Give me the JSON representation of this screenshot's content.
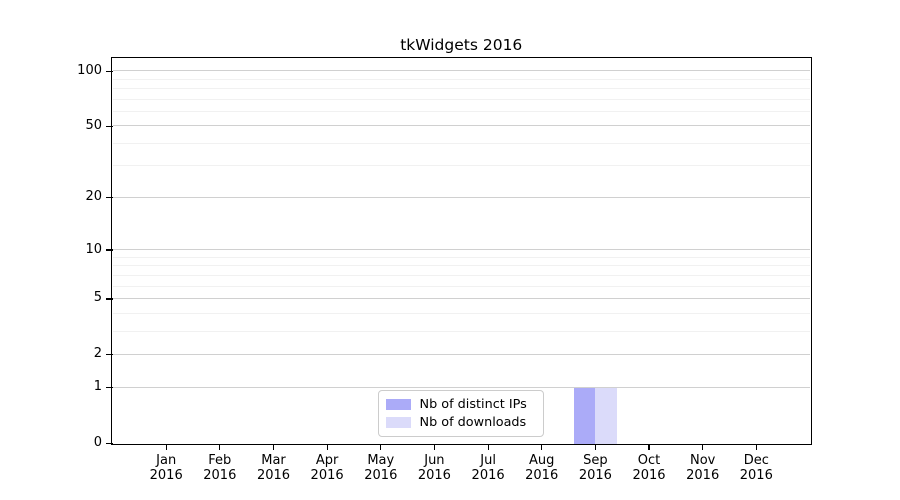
{
  "chart_data": {
    "type": "bar",
    "title": "tkWidgets 2016",
    "x_tick_months": [
      "Jan",
      "Feb",
      "Mar",
      "Apr",
      "May",
      "Jun",
      "Jul",
      "Aug",
      "Sep",
      "Oct",
      "Nov",
      "Dec"
    ],
    "x_tick_year": "2016",
    "series": [
      {
        "name": "Nb of distinct IPs",
        "color": "#ababf8",
        "values": [
          0,
          0,
          0,
          0,
          0,
          0,
          0,
          0,
          1,
          0,
          0,
          0
        ]
      },
      {
        "name": "Nb of downloads",
        "color": "#dbdbfa",
        "values": [
          0,
          0,
          0,
          0,
          0,
          0,
          0,
          0,
          1,
          0,
          0,
          0
        ]
      }
    ],
    "yscale": "log1p",
    "ylim": [
      0,
      117
    ],
    "yticks": [
      0,
      1,
      2,
      5,
      10,
      20,
      50,
      100
    ],
    "ytick_labels": [
      "0",
      "1",
      "2",
      "5",
      "10",
      "20",
      "50",
      "100"
    ],
    "minor_gridline_values": [
      3,
      4,
      6,
      7,
      8,
      9,
      30,
      40,
      60,
      70,
      80,
      90
    ],
    "grid": true,
    "legend": {
      "position": "lower center"
    }
  }
}
